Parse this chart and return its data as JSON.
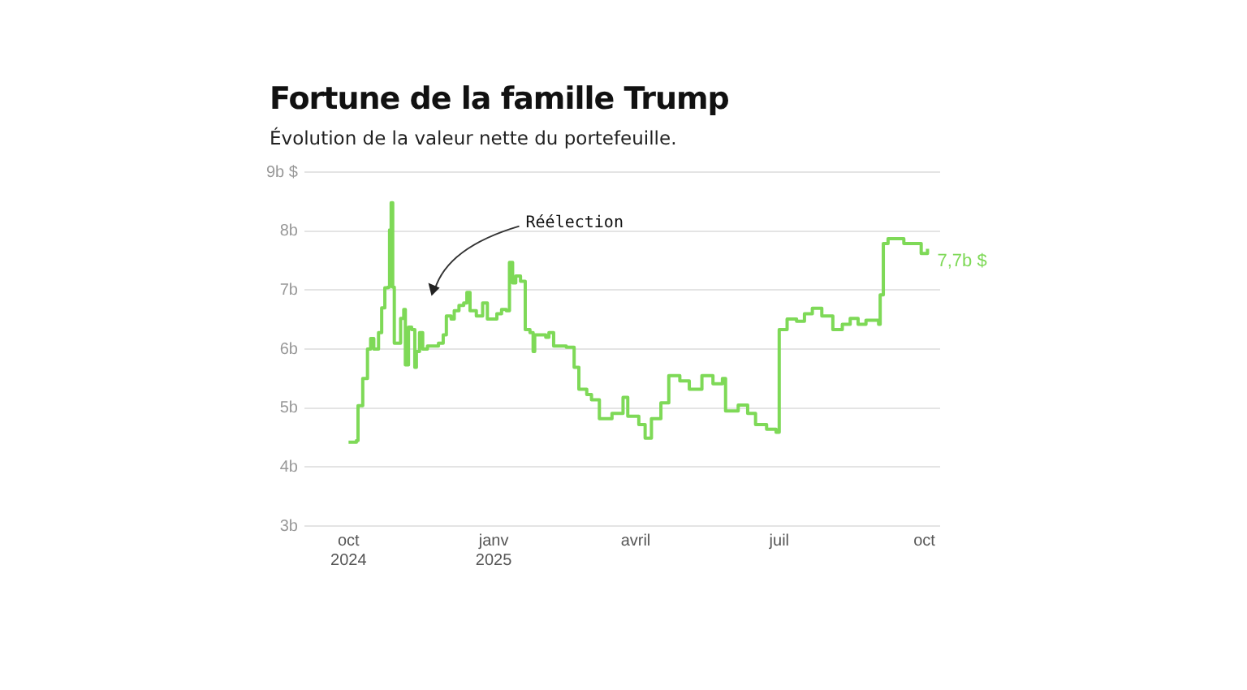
{
  "chart_data": {
    "type": "step",
    "title": "Fortune de la famille Trump",
    "subtitle": "Évolution de la valeur nette du portefeuille.",
    "x": [
      "2024-10-01",
      "2024-10-06",
      "2024-10-07",
      "2024-10-10",
      "2024-10-13",
      "2024-10-15",
      "2024-10-17",
      "2024-10-20",
      "2024-10-22",
      "2024-10-24",
      "2024-10-26",
      "2024-10-27",
      "2024-10-28",
      "2024-10-29",
      "2024-10-30",
      "2024-11-01",
      "2024-11-03",
      "2024-11-05",
      "2024-11-06",
      "2024-11-08",
      "2024-11-10",
      "2024-11-12",
      "2024-11-13",
      "2024-11-15",
      "2024-11-17",
      "2024-11-20",
      "2024-11-27",
      "2024-11-30",
      "2024-12-02",
      "2024-12-05",
      "2024-12-07",
      "2024-12-10",
      "2024-12-13",
      "2024-12-15",
      "2024-12-17",
      "2024-12-21",
      "2024-12-25",
      "2024-12-28",
      "2025-01-03",
      "2025-01-06",
      "2025-01-09",
      "2025-01-11",
      "2025-01-13",
      "2025-01-15",
      "2025-01-18",
      "2025-01-21",
      "2025-01-24",
      "2025-01-26",
      "2025-01-27",
      "2025-02-03",
      "2025-02-05",
      "2025-02-08",
      "2025-02-16",
      "2025-02-21",
      "2025-02-24",
      "2025-03-01",
      "2025-03-04",
      "2025-03-09",
      "2025-03-17",
      "2025-03-24",
      "2025-03-27",
      "2025-04-03",
      "2025-04-07",
      "2025-04-11",
      "2025-04-17",
      "2025-04-22",
      "2025-04-29",
      "2025-05-05",
      "2025-05-13",
      "2025-05-20",
      "2025-05-26",
      "2025-05-28",
      "2025-06-05",
      "2025-06-11",
      "2025-06-16",
      "2025-06-23",
      "2025-06-29",
      "2025-07-01",
      "2025-07-06",
      "2025-07-12",
      "2025-07-17",
      "2025-07-22",
      "2025-07-28",
      "2025-08-04",
      "2025-08-10",
      "2025-08-15",
      "2025-08-20",
      "2025-08-25",
      "2025-09-02",
      "2025-09-03",
      "2025-09-05",
      "2025-09-08",
      "2025-09-18",
      "2025-09-29",
      "2025-10-03"
    ],
    "series": [
      {
        "color": "#7ed957",
        "values": [
          4.42,
          4.45,
          5.04,
          5.5,
          6.0,
          6.18,
          6.0,
          6.28,
          6.7,
          7.04,
          7.05,
          8.02,
          8.48,
          7.05,
          6.1,
          6.1,
          6.52,
          6.67,
          5.73,
          6.37,
          6.33,
          5.69,
          5.96,
          6.28,
          6.0,
          6.05,
          6.1,
          6.24,
          6.56,
          6.51,
          6.65,
          6.74,
          6.78,
          6.96,
          6.65,
          6.56,
          6.78,
          6.51,
          6.6,
          6.67,
          6.65,
          7.47,
          7.12,
          7.24,
          7.15,
          6.33,
          6.28,
          5.96,
          6.24,
          6.2,
          6.28,
          6.05,
          6.03,
          5.69,
          5.32,
          5.23,
          5.14,
          4.82,
          4.91,
          5.18,
          4.86,
          4.72,
          4.49,
          4.82,
          5.09,
          5.55,
          5.46,
          5.32,
          5.55,
          5.41,
          5.5,
          4.95,
          5.05,
          4.91,
          4.72,
          4.64,
          4.59,
          6.33,
          6.51,
          6.47,
          6.6,
          6.69,
          6.56,
          6.33,
          6.42,
          6.52,
          6.42,
          6.49,
          6.42,
          6.92,
          7.79,
          7.87,
          7.79,
          7.62,
          7.7
        ],
        "value_labels": [
          null,
          null,
          null,
          null,
          null,
          null,
          null,
          null,
          null,
          null,
          null,
          null,
          null,
          null,
          null,
          null,
          null,
          null,
          null,
          null,
          null,
          null,
          null,
          null,
          null,
          null,
          null,
          null,
          null,
          null,
          null,
          null,
          null,
          null,
          null,
          null,
          null,
          null,
          null,
          null,
          null,
          null,
          null,
          null,
          null,
          null,
          null,
          null,
          null,
          null,
          null,
          null,
          null,
          null,
          null,
          null,
          null,
          null,
          null,
          null,
          null,
          null,
          null,
          null,
          null,
          null,
          null,
          null,
          null,
          null,
          null,
          null,
          null,
          null,
          null,
          null,
          null,
          null,
          null,
          null,
          null,
          null,
          null,
          null,
          null,
          null,
          null,
          null,
          null,
          null,
          null,
          null,
          null,
          null,
          "7,7b $"
        ]
      }
    ],
    "xlim": [
      "2024-09-03",
      "2025-10-11"
    ],
    "xticks": [
      {
        "value": "2024-10-01",
        "label": "oct\n2024"
      },
      {
        "value": "2025-01-01",
        "label": "janv\n2025"
      },
      {
        "value": "2025-04-01",
        "label": "avril"
      },
      {
        "value": "2025-07-01",
        "label": "juil"
      },
      {
        "value": "2025-10-01",
        "label": "oct"
      }
    ],
    "ylim": [
      3,
      9
    ],
    "yticks": [
      {
        "value": 3,
        "label": "3b"
      },
      {
        "value": 4,
        "label": "4b"
      },
      {
        "value": 5,
        "label": "5b"
      },
      {
        "value": 6,
        "label": "6b"
      },
      {
        "value": 7,
        "label": "7b"
      },
      {
        "value": 8,
        "label": "8b"
      },
      {
        "value": 9,
        "label": "9b $"
      }
    ],
    "grid": "y",
    "annotations": [
      "Réélection"
    ]
  }
}
